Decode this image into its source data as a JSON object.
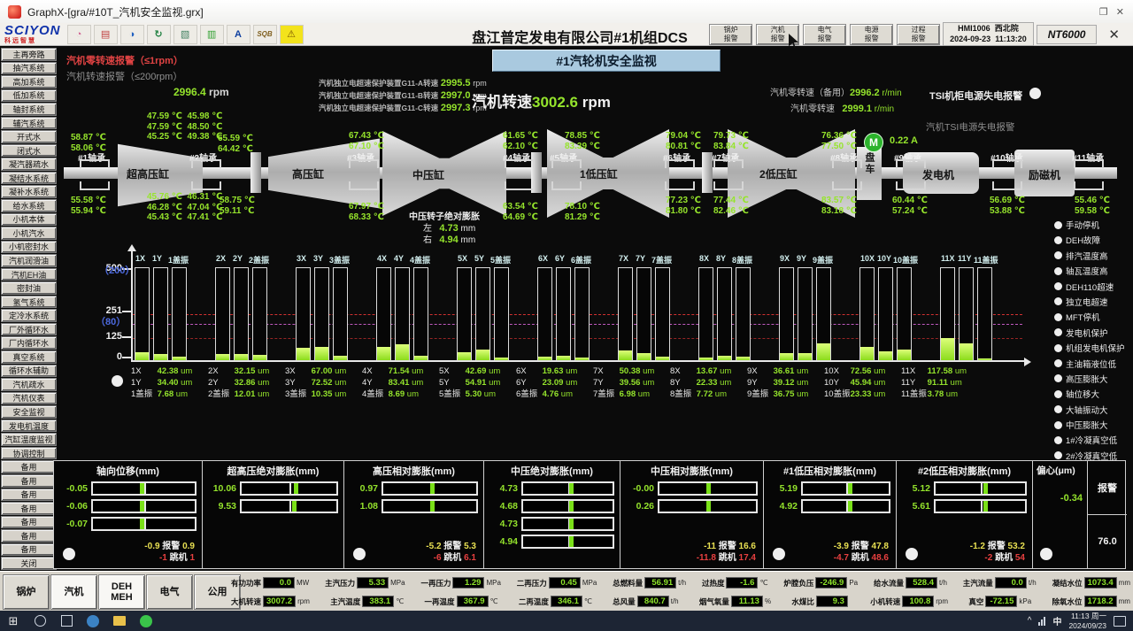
{
  "colors": {
    "accent_green": "#94e32c",
    "alarm_red": "#e04343",
    "limit_yellow": "#e8e052",
    "limit_red": "#e84040",
    "subtitle_bg": "#a9c9df"
  },
  "window": {
    "title": "GraphX-[gra/#10T_汽机安全监视.grx]",
    "minimize": "—",
    "restore": "❐",
    "close": "✕"
  },
  "toolbar": {
    "logo": "SCIYON",
    "logo_sub": "科远智慧",
    "icons": [
      {
        "name": "users-icon",
        "glyph": "◔",
        "color": "#d06090"
      },
      {
        "name": "print-icon",
        "glyph": "▤",
        "color": "#c04040"
      },
      {
        "name": "display-icon",
        "glyph": "◑",
        "color": "#2060c0"
      },
      {
        "name": "rotate-icon",
        "glyph": "↻",
        "color": "#208040"
      },
      {
        "name": "document-icon",
        "glyph": "▧",
        "color": "#408060"
      },
      {
        "name": "cards-icon",
        "glyph": "▥",
        "color": "#30a030"
      },
      {
        "name": "font-icon",
        "glyph": "A",
        "color": "#1040a0"
      },
      {
        "name": "sqb-icon",
        "glyph": "SQB",
        "color": "#806020"
      },
      {
        "name": "alarm-bell-icon",
        "glyph": "⚠",
        "color": "#7a5500",
        "bg": "#f3e31c"
      }
    ],
    "alarm_buttons": [
      {
        "line1": "锅炉",
        "line2": "报警"
      },
      {
        "line1": "汽机",
        "line2": "报警"
      },
      {
        "line1": "电气",
        "line2": "报警"
      },
      {
        "line1": "电源",
        "line2": "报警"
      },
      {
        "line1": "过程",
        "line2": "报警"
      }
    ],
    "hmi": {
      "id": "HMI1006",
      "date": "2024-09-23",
      "station": "西北院",
      "time": "11:13:20",
      "brand": "NT6000",
      "close": "✕"
    },
    "plant_title": "盘江普定发电有限公司#1机组DCS"
  },
  "header": {
    "page_title": "#1汽轮机安全监视",
    "alarm_zero": "汽机零转速报警（≤1rpm）",
    "alarm_low": "汽机转速报警（≤200rpm）",
    "aux_speed": "2996.4",
    "aux_speed_unit": "rpm",
    "overspeed_rows": [
      {
        "label": "汽机独立电超速保护装置G11-A转速",
        "value": "2995.5",
        "unit": "rpm"
      },
      {
        "label": "汽机独立电超速保护装置G11-B转速",
        "value": "2997.0",
        "unit": "rpm"
      },
      {
        "label": "汽机独立电超速保护装置G11-C转速",
        "value": "2997.3",
        "unit": "rpm"
      }
    ],
    "main_speed_label": "汽机转速",
    "main_speed": "3002.6",
    "main_speed_unit": "rpm",
    "zero_backup_label": "汽机零转速（备用）",
    "zero_backup_value": "2996.2",
    "zero_backup_unit": "r/min",
    "zero_label": "汽机零转速",
    "zero_value": "2999.1",
    "zero_unit": "r/min",
    "tsi_cabinet_alarm": "TSI机柜电源失电报警",
    "tsi_turbine_alarm": "汽机TSI电源失电报警"
  },
  "sidebar": {
    "items": [
      "主再旁路",
      "抽汽系统",
      "高加系统",
      "低加系统",
      "轴封系统",
      "辅汽系统",
      "开式水",
      "闭式水",
      "凝汽器疏水",
      "凝结水系统",
      "凝补水系统",
      "给水系统",
      "小机本体",
      "小机汽水",
      "小机密封水",
      "汽机润滑油",
      "汽机EH油",
      "密封油",
      "氢气系统",
      "定冷水系统",
      "厂外循环水",
      "厂内循环水",
      "真空系统",
      "循环水辅助",
      "汽机疏水",
      "汽机仪表",
      "安全监视",
      "发电机温度",
      "汽缸温度监视",
      "协调控制",
      "备用",
      "备用",
      "备用",
      "备用",
      "备用",
      "备用",
      "备用",
      "关闭"
    ]
  },
  "turbine": {
    "components": [
      {
        "label": "超高压缸"
      },
      {
        "label": "高压缸"
      },
      {
        "label": "中压缸"
      },
      {
        "label": "1低压缸"
      },
      {
        "label": "2低压缸"
      },
      {
        "label": "盘车"
      },
      {
        "label": "发电机"
      },
      {
        "label": "励磁机"
      }
    ],
    "bearings": [
      "#1轴承",
      "#2轴承",
      "#3轴承",
      "#4轴承",
      "#5轴承",
      "#6轴承",
      "#7轴承",
      "#8轴承",
      "#9轴承",
      "#10轴承",
      "#11轴承"
    ],
    "temp_blocks": [
      {
        "lines": [
          "58.87 ℃",
          "58.06 ℃"
        ]
      },
      {
        "lines": [
          "47.59 ℃  45.98 ℃",
          "47.59 ℃  48.50 ℃",
          "45.25 ℃  49.38 ℃"
        ]
      },
      {
        "lines": [
          "65.59 ℃",
          "64.42 ℃"
        ]
      },
      {
        "lines": [
          "55.58 ℃",
          "55.94 ℃"
        ]
      },
      {
        "lines": [
          "45.76 ℃  46.31 ℃",
          "46.28 ℃  47.04 ℃",
          "45.43 ℃  47.41 ℃"
        ]
      },
      {
        "lines": [
          "58.75 ℃",
          "59.11 ℃"
        ]
      },
      {
        "lines": [
          "67.43 ℃",
          "67.10 ℃"
        ]
      },
      {
        "lines": [
          "67.97 ℃",
          "68.33 ℃"
        ]
      },
      {
        "lines": [
          "61.65 ℃",
          "62.10 ℃"
        ]
      },
      {
        "lines": [
          "63.54 ℃",
          "64.69 ℃"
        ]
      },
      {
        "lines": [
          "78.85 ℃",
          "83.39 ℃"
        ]
      },
      {
        "lines": [
          "78.10 ℃",
          "81.29 ℃"
        ]
      },
      {
        "lines": [
          "79.04 ℃",
          "80.81 ℃"
        ]
      },
      {
        "lines": [
          "77.23 ℃",
          "81.80 ℃"
        ]
      },
      {
        "lines": [
          "79.73 ℃",
          "83.84 ℃"
        ]
      },
      {
        "lines": [
          "77.44 ℃",
          "82.46 ℃"
        ]
      },
      {
        "lines": [
          "76.36 ℃",
          "77.50 ℃"
        ]
      },
      {
        "lines": [
          "83.57 ℃",
          "83.18 ℃"
        ]
      },
      {
        "lines": [
          "60.44 ℃",
          "57.24 ℃"
        ]
      },
      {
        "lines": [
          "56.69 ℃",
          "53.88 ℃"
        ]
      },
      {
        "lines": [
          "55.46 ℃",
          "59.58 ℃"
        ]
      }
    ],
    "mid_expansion": {
      "title": "中压转子绝对膨胀",
      "rows": [
        {
          "label": "左",
          "value": "4.73",
          "unit": "mm"
        },
        {
          "label": "右",
          "value": "4.94",
          "unit": "mm"
        }
      ]
    },
    "motor_label": "M",
    "barring_current": "0.22 A"
  },
  "chart_data": {
    "type": "bar",
    "title": "轴承振动 (X/Y/盖振)",
    "categories": [
      "1",
      "2",
      "3",
      "4",
      "5",
      "6",
      "7",
      "8",
      "9",
      "10",
      "11"
    ],
    "series": [
      {
        "name": "X",
        "values": [
          42.38,
          32.15,
          67.0,
          71.54,
          42.69,
          19.63,
          50.38,
          13.67,
          36.61,
          72.56,
          117.58
        ]
      },
      {
        "name": "Y",
        "values": [
          34.4,
          32.86,
          72.52,
          83.41,
          54.91,
          23.09,
          39.56,
          22.33,
          39.12,
          45.94,
          91.11
        ]
      },
      {
        "name": "盖振",
        "values": [
          7.68,
          12.01,
          10.35,
          8.69,
          5.3,
          4.76,
          6.98,
          7.72,
          36.75,
          23.33,
          3.78
        ]
      }
    ],
    "unit": "um",
    "ylabel": "",
    "xlabel": "",
    "ylim": [
      0,
      500
    ],
    "ylim_secondary": [
      0,
      200
    ],
    "y_axis_left": [
      "500",
      "251",
      "125",
      "0"
    ],
    "y_axis_secondary": [
      "（200）",
      "（80）"
    ],
    "alarm_levels": {
      "primary": 251,
      "secondary": 80,
      "low": 125
    },
    "grid": false,
    "legend_position": "none"
  },
  "trip_list": [
    "手动停机",
    "DEH故障",
    "排汽温度高",
    "轴瓦温度高",
    "DEH110超速",
    "独立电超速",
    "MFT停机",
    "发电机保护",
    "机组发电机保护",
    "主油箱液位低",
    "高压膨胀大",
    "轴位移大",
    "大轴振动大",
    "中压膨胀大",
    "1#冷凝真空低",
    "2#冷凝真空低",
    "EH油压低",
    "低压1#膨胀大",
    "低压2#膨胀大"
  ],
  "panels": [
    {
      "title": "轴向位移(mm)",
      "gauges": [
        {
          "value": "-0.05",
          "pct": 48
        },
        {
          "value": "-0.06",
          "pct": 48
        },
        {
          "value": "-0.07",
          "pct": 48
        }
      ],
      "alarm_label": "报警",
      "trip_label": "跳机",
      "alarm": {
        "lo": "-0.9",
        "hi": "0.9"
      },
      "trip": {
        "lo": "-1",
        "hi": "1"
      },
      "indicator": true
    },
    {
      "title": "超高压绝对膨胀(mm)",
      "gauges": [
        {
          "value": "10.06",
          "pct": 57
        },
        {
          "value": "9.53",
          "pct": 55
        }
      ]
    },
    {
      "title": "高压相对膨胀(mm)",
      "gauges": [
        {
          "value": "0.97",
          "pct": 52
        },
        {
          "value": "1.08",
          "pct": 52
        }
      ],
      "alarm_label": "报警",
      "trip_label": "跳机",
      "alarm": {
        "lo": "-5.2",
        "hi": "5.3"
      },
      "trip": {
        "lo": "-6",
        "hi": "6.1"
      },
      "indicator": true
    },
    {
      "title": "中压绝对膨胀(mm)",
      "gauges": [
        {
          "value": "4.73",
          "pct": 53
        },
        {
          "value": "4.68",
          "pct": 53
        },
        {
          "value": "4.73",
          "pct": 53
        },
        {
          "value": "4.94",
          "pct": 53
        }
      ]
    },
    {
      "title": "中压相对膨胀(mm)",
      "gauges": [
        {
          "value": "-0.00",
          "pct": 50
        },
        {
          "value": "0.26",
          "pct": 50
        }
      ],
      "alarm_label": "报警",
      "trip_label": "跳机",
      "alarm": {
        "lo": "-11",
        "hi": "16.6"
      },
      "trip": {
        "lo": "-11.8",
        "hi": "17.4"
      }
    },
    {
      "title": "#1低压相对膨胀(mm)",
      "gauges": [
        {
          "value": "5.19",
          "pct": 55
        },
        {
          "value": "4.92",
          "pct": 55
        }
      ],
      "alarm_label": "报警",
      "trip_label": "跳机",
      "alarm": {
        "lo": "-3.9",
        "hi": "47.8"
      },
      "trip": {
        "lo": "-4.7",
        "hi": "48.6"
      },
      "indicator": true
    },
    {
      "title": "#2低压相对膨胀(mm)",
      "gauges": [
        {
          "value": "5.12",
          "pct": 55
        },
        {
          "value": "5.61",
          "pct": 55
        }
      ],
      "alarm_label": "报警",
      "trip_label": "跳机",
      "alarm": {
        "lo": "-1.2",
        "hi": "53.2"
      },
      "trip": {
        "lo": "-2",
        "hi": "54"
      },
      "indicator": true
    },
    {
      "title": "偏心(μm)",
      "type": "eccentricity",
      "value": "-0.34",
      "indicator": true,
      "side": {
        "alarm_label": "报警",
        "alarm_value": "76.0"
      }
    }
  ],
  "bottom_nav": [
    {
      "label": "锅炉",
      "active": false
    },
    {
      "label": "汽机",
      "active": true
    },
    {
      "label": "DEH",
      "label2": "MEH",
      "active": true
    },
    {
      "label": "电气",
      "active": false
    },
    {
      "label": "公用",
      "active": false
    }
  ],
  "status_rows": [
    [
      {
        "label": "有功功率",
        "value": "0.0",
        "unit": "MW"
      },
      {
        "label": "主汽压力",
        "value": "5.33",
        "unit": "MPa"
      },
      {
        "label": "一再压力",
        "value": "1.29",
        "unit": "MPa"
      },
      {
        "label": "二再压力",
        "value": "0.45",
        "unit": "MPa"
      },
      {
        "label": "总燃料量",
        "value": "56.91",
        "unit": "t/h"
      },
      {
        "label": "过热度",
        "value": "-1.6",
        "unit": "℃"
      },
      {
        "label": "炉膛负压",
        "value": "-246.9",
        "unit": "Pa"
      },
      {
        "label": "给水流量",
        "value": "528.4",
        "unit": "t/h"
      },
      {
        "label": "主汽流量",
        "value": "0.0",
        "unit": "t/h"
      },
      {
        "label": "凝结水位",
        "value": "1073.4",
        "unit": "mm"
      }
    ],
    [
      {
        "label": "大机转速",
        "value": "3007.2",
        "unit": "rpm"
      },
      {
        "label": "主汽温度",
        "value": "383.1",
        "unit": "℃"
      },
      {
        "label": "一再温度",
        "value": "367.9",
        "unit": "℃"
      },
      {
        "label": "二再温度",
        "value": "346.1",
        "unit": "℃"
      },
      {
        "label": "总风量",
        "value": "840.7",
        "unit": "t/h"
      },
      {
        "label": "烟气氧量",
        "value": "11.13",
        "unit": "%"
      },
      {
        "label": "水煤比",
        "value": "9.3",
        "unit": ""
      },
      {
        "label": "小机转速",
        "value": "100.8",
        "unit": "rpm"
      },
      {
        "label": "真空",
        "value": "-72.15",
        "unit": "kPa"
      },
      {
        "label": "除氧水位",
        "value": "1718.2",
        "unit": "mm"
      }
    ]
  ],
  "taskbar": {
    "time": "11:13 周一",
    "date": "2024/09/23",
    "ime": "中",
    "tray_expand": "^"
  }
}
